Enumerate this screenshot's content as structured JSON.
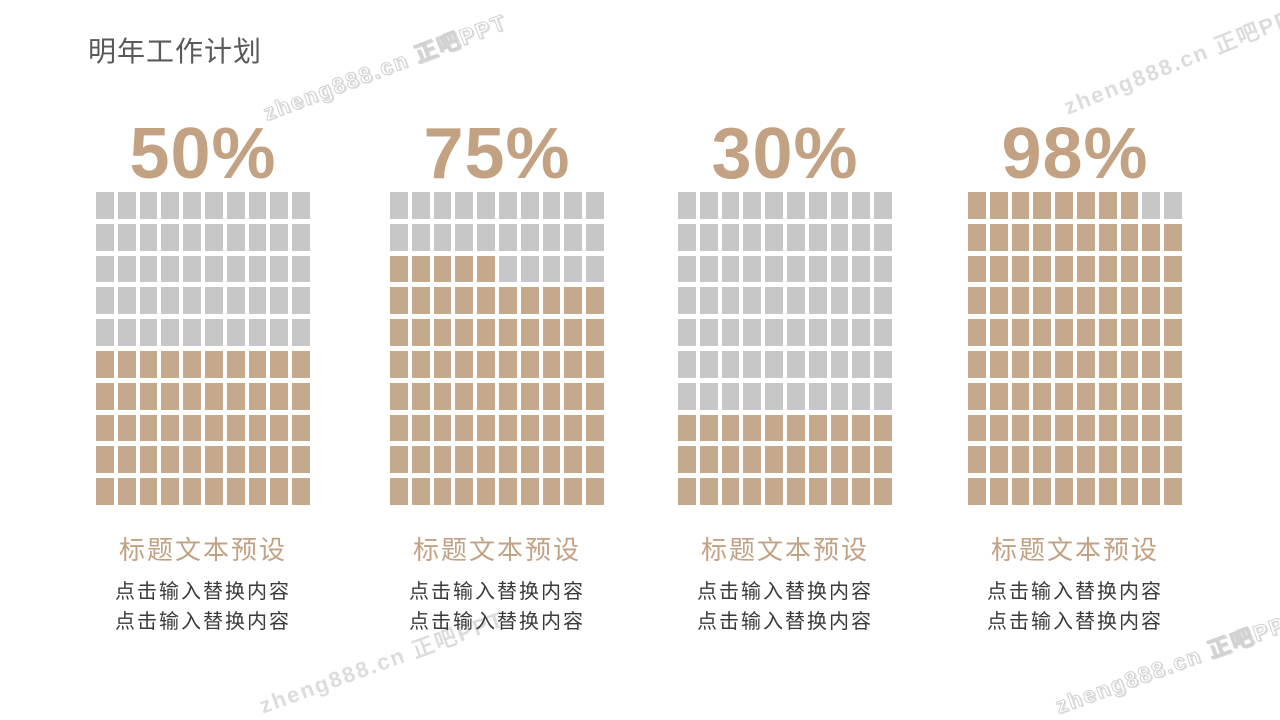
{
  "page": {
    "title": "明年工作计划"
  },
  "colors": {
    "accent": "#c3a283",
    "square_filled": "#c5a98c",
    "square_empty": "#c7c7c7",
    "title_text": "#595959",
    "body_text": "#3b3b3b",
    "watermark": "#dcdcdc"
  },
  "chart_data": [
    {
      "type": "waffle",
      "rows": 10,
      "cols": 10,
      "percent": 50,
      "label": "50%",
      "filled_cells": 50,
      "fill_order": "bottom-up, partial row left-to-right",
      "caption_title": "标题文本预设",
      "caption_lines": [
        "点击输入替换内容",
        "点击输入替换内容"
      ]
    },
    {
      "type": "waffle",
      "rows": 10,
      "cols": 10,
      "percent": 75,
      "label": "75%",
      "filled_cells": 75,
      "fill_order": "bottom-up, partial row left-to-right",
      "caption_title": "标题文本预设",
      "caption_lines": [
        "点击输入替换内容",
        "点击输入替换内容"
      ]
    },
    {
      "type": "waffle",
      "rows": 10,
      "cols": 10,
      "percent": 30,
      "label": "30%",
      "filled_cells": 30,
      "fill_order": "bottom-up, partial row left-to-right",
      "caption_title": "标题文本预设",
      "caption_lines": [
        "点击输入替换内容",
        "点击输入替换内容"
      ]
    },
    {
      "type": "waffle",
      "rows": 10,
      "cols": 10,
      "percent": 98,
      "label": "98%",
      "filled_cells": 98,
      "fill_order": "bottom-up, partial row left-to-right",
      "caption_title": "标题文本预设",
      "caption_lines": [
        "点击输入替换内容",
        "点击输入替换内容"
      ]
    }
  ],
  "watermarks": [
    {
      "text": "zheng888.cn 正吧PPT",
      "style": "outline",
      "position": "top-left"
    },
    {
      "text": "zheng888.cn 正吧PPT",
      "style": "plain",
      "position": "top-right"
    },
    {
      "text": "zheng888.cn 正吧PPT",
      "style": "plain",
      "position": "bottom-left"
    },
    {
      "text": "zheng888.cn 正吧PPT",
      "style": "outline",
      "position": "bottom-right"
    }
  ]
}
